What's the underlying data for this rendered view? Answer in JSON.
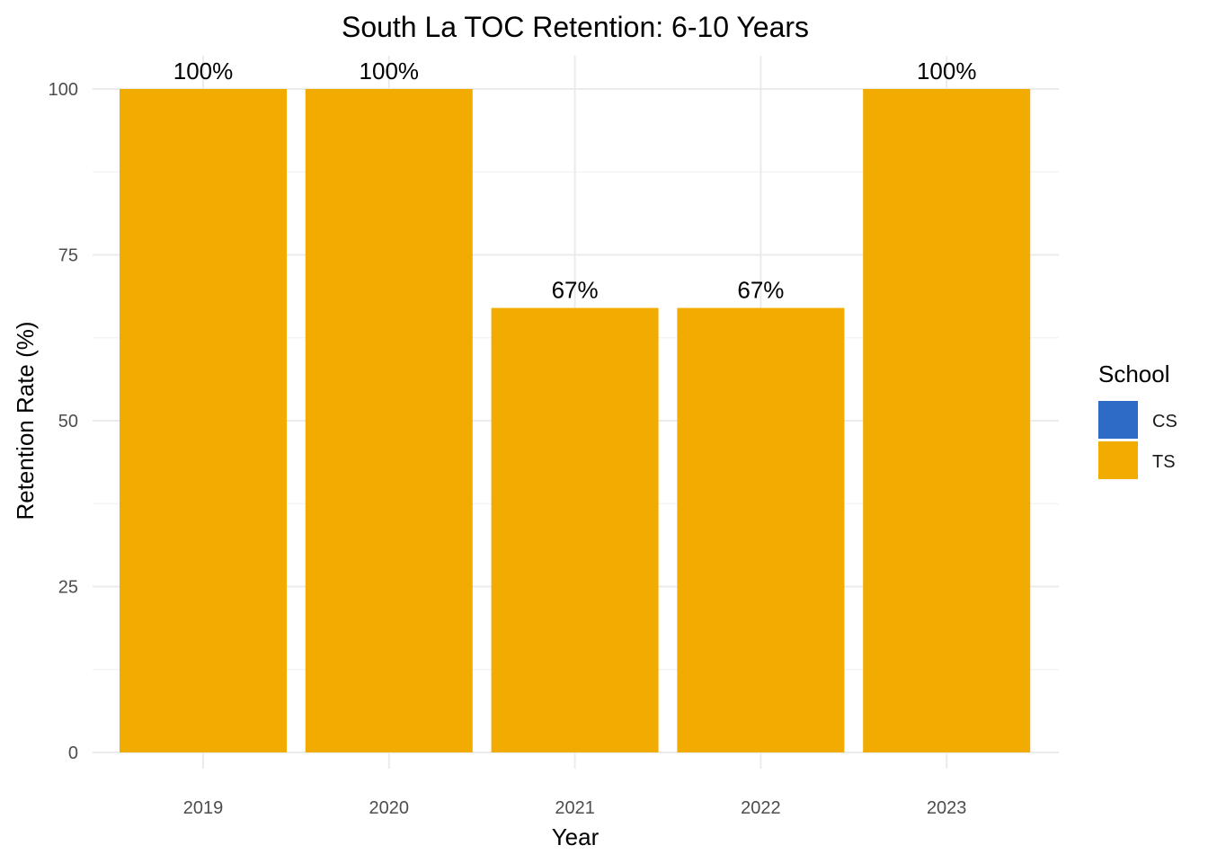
{
  "chart_data": {
    "type": "bar",
    "title": "South La TOC Retention: 6-10 Years",
    "xlabel": "Year",
    "ylabel": "Retention Rate (%)",
    "categories": [
      "2019",
      "2020",
      "2021",
      "2022",
      "2023"
    ],
    "series": [
      {
        "name": "CS",
        "color": "#2e6bc7",
        "values": [
          null,
          null,
          null,
          null,
          null
        ]
      },
      {
        "name": "TS",
        "color": "#f2ab00",
        "values": [
          100,
          100,
          67,
          67,
          100
        ]
      }
    ],
    "data_labels": [
      "100%",
      "100%",
      "67%",
      "67%",
      "100%"
    ],
    "ylim": [
      0,
      100
    ],
    "yticks": [
      0,
      25,
      50,
      75,
      100
    ],
    "grid": true,
    "legend": {
      "title": "School",
      "position": "right"
    }
  }
}
